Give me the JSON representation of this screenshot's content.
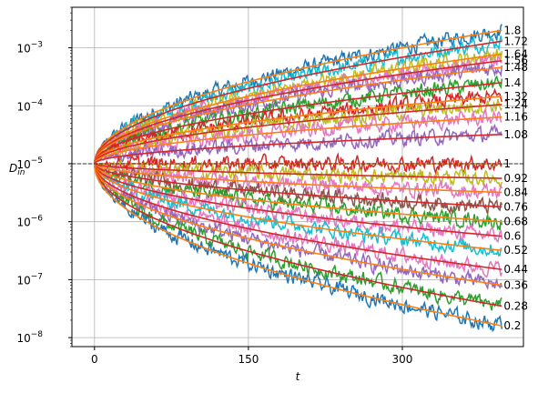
{
  "chart_data": {
    "type": "line",
    "xlabel": "t",
    "ylabel": "D_in",
    "ylabel_main": "D",
    "ylabel_sub": "in",
    "xlim": [
      -22,
      418
    ],
    "ylim": [
      7e-09,
      0.005
    ],
    "yscale": "log",
    "x_ticks": [
      0,
      150,
      300
    ],
    "x_tick_labels": [
      "0",
      "150",
      "300"
    ],
    "y_ticks": [
      1e-08,
      1e-07,
      1e-06,
      1e-05,
      0.0001,
      0.001
    ],
    "y_tick_bases": [
      "10",
      "10",
      "10",
      "10",
      "10",
      "10"
    ],
    "y_tick_exponents": [
      "−8",
      "−7",
      "−6",
      "−5",
      "−4",
      "−3"
    ],
    "grid": true,
    "reference_line": {
      "y": 1e-05,
      "style": "dashed",
      "color": "#333333"
    },
    "initial_value": 1e-05,
    "x_range": [
      0,
      397
    ],
    "curve_labels": [
      "1.8",
      "1.72",
      "1.64",
      "1.56",
      "1.48",
      "1.4",
      "1.32",
      "1.24",
      "1.16",
      "1.08",
      "1",
      "0.92",
      "0.84",
      "0.76",
      "0.68",
      "0.6",
      "0.52",
      "0.44",
      "0.36",
      "0.28",
      "0.2"
    ],
    "series": [
      {
        "param": 1.8,
        "end_value": 0.002,
        "color": "#1f77b4"
      },
      {
        "param": 1.72,
        "end_value": 0.0013,
        "color": "#17becf"
      },
      {
        "param": 1.64,
        "end_value": 0.00078,
        "color": "#bcbd22"
      },
      {
        "param": 1.56,
        "end_value": 0.0006,
        "color": "#e377c2"
      },
      {
        "param": 1.48,
        "end_value": 0.00046,
        "color": "#9467bd"
      },
      {
        "param": 1.4,
        "end_value": 0.00025,
        "color": "#2ca02c"
      },
      {
        "param": 1.32,
        "end_value": 0.000145,
        "color": "#d62728"
      },
      {
        "param": 1.24,
        "end_value": 0.000105,
        "color": "#bcbd22"
      },
      {
        "param": 1.16,
        "end_value": 6.4e-05,
        "color": "#e377c2"
      },
      {
        "param": 1.08,
        "end_value": 3.2e-05,
        "color": "#9467bd"
      },
      {
        "param": 1,
        "end_value": 1e-05,
        "color": "#d62728"
      },
      {
        "param": 0.92,
        "end_value": 5.6e-06,
        "color": "#bcbd22"
      },
      {
        "param": 0.84,
        "end_value": 3.2e-06,
        "color": "#e377c2"
      },
      {
        "param": 0.76,
        "end_value": 1.8e-06,
        "color": "#8c564b"
      },
      {
        "param": 0.68,
        "end_value": 1e-06,
        "color": "#2ca02c"
      },
      {
        "param": 0.6,
        "end_value": 5.6e-07,
        "color": "#e377c2"
      },
      {
        "param": 0.52,
        "end_value": 3.2e-07,
        "color": "#17becf"
      },
      {
        "param": 0.44,
        "end_value": 1.5e-07,
        "color": "#e377c2"
      },
      {
        "param": 0.36,
        "end_value": 8e-08,
        "color": "#9467bd"
      },
      {
        "param": 0.28,
        "end_value": 3.5e-08,
        "color": "#2ca02c"
      },
      {
        "param": 0.2,
        "end_value": 1.6e-08,
        "color": "#1f77b4"
      }
    ],
    "fit_colors": [
      "#ff7f0e",
      "#d62728"
    ]
  }
}
